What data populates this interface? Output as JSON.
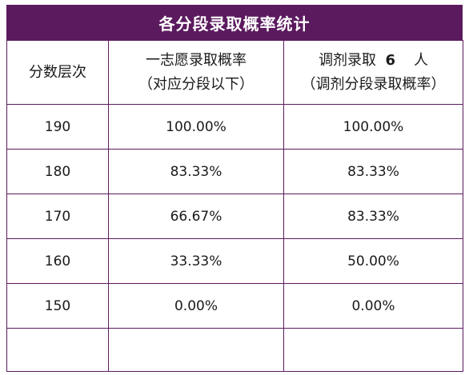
{
  "title": "各分段录取概率统计",
  "headers": {
    "col1": "分数层次",
    "col2_line1": "一志愿录取概率",
    "col2_line2": "（对应分段以下）",
    "col3_line1_prefix": "调剂录取",
    "col3_count": "6",
    "col3_unit": "人",
    "col3_line2": "（调剂分段录取概率）"
  },
  "rows": [
    {
      "score": "190",
      "first_choice": "100.00%",
      "adjusted": "100.00%"
    },
    {
      "score": "180",
      "first_choice": "83.33%",
      "adjusted": "83.33%"
    },
    {
      "score": "170",
      "first_choice": "66.67%",
      "adjusted": "83.33%"
    },
    {
      "score": "160",
      "first_choice": "33.33%",
      "adjusted": "50.00%"
    },
    {
      "score": "150",
      "first_choice": "0.00%",
      "adjusted": "0.00%"
    }
  ],
  "colors": {
    "header_bg": "#5b1a5e",
    "border": "#5b1a5e"
  }
}
